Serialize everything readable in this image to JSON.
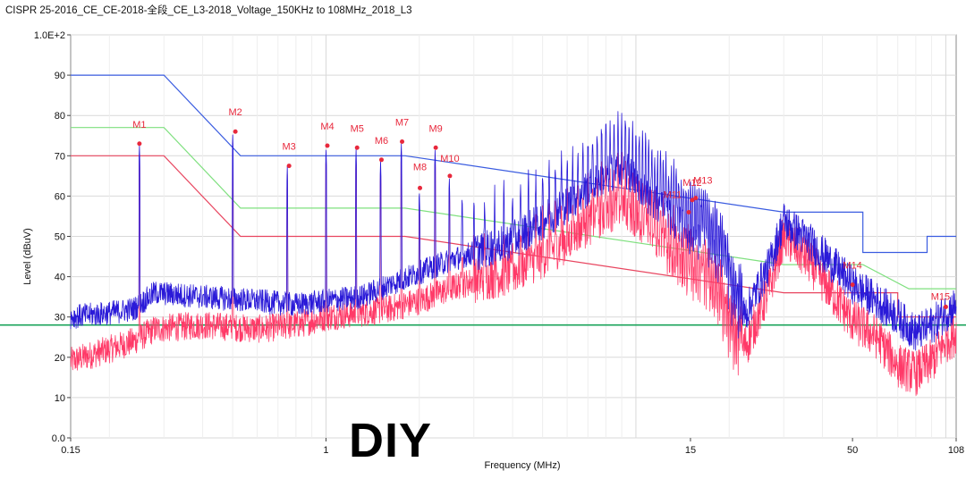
{
  "title": "CISPR 25-2016_CE_CE-2018-全段_CE_L3-2018_Voltage_150KHz to 108MHz_2018_L3",
  "watermark": "DIY",
  "colors": {
    "peak_limit": "#3a5ce0",
    "qp_limit": "#7fe07f",
    "avg_limit": "#e8455f",
    "peak_trace": "#2a1ad8",
    "avg_trace": "#ff3a68",
    "marker": "#e8283c",
    "reference_line": "#1aa35a",
    "grid": "#d9d9d9"
  },
  "chart_data": {
    "type": "line",
    "title": "CISPR 25-2016_CE_CE-2018-全段_CE_L3-2018_Voltage_150KHz to 108MHz_2018_L3",
    "xlabel": "Frequency (MHz)",
    "ylabel": "Level (dBuV)",
    "x_scale": "log",
    "xlim": [
      0.15,
      108
    ],
    "ylim": [
      0,
      100
    ],
    "x_ticks": [
      {
        "value": 0.15,
        "label": "0.15"
      },
      {
        "value": 1,
        "label": "1"
      },
      {
        "value": 15,
        "label": "15"
      },
      {
        "value": 50,
        "label": "50"
      },
      {
        "value": 108,
        "label": "108"
      }
    ],
    "y_ticks": [
      {
        "value": 0,
        "label": "0.0"
      },
      {
        "value": 10,
        "label": "10"
      },
      {
        "value": 20,
        "label": "20"
      },
      {
        "value": 30,
        "label": "30"
      },
      {
        "value": 40,
        "label": "40"
      },
      {
        "value": 50,
        "label": "50"
      },
      {
        "value": 60,
        "label": "60"
      },
      {
        "value": 70,
        "label": "70"
      },
      {
        "value": 80,
        "label": "80"
      },
      {
        "value": 90,
        "label": "90"
      },
      {
        "value": 100,
        "label": "1.0E+2"
      }
    ],
    "grid": true,
    "reference_line": 28,
    "limits": [
      {
        "role": "peak_limit",
        "points": [
          [
            0.15,
            90
          ],
          [
            0.3,
            90
          ],
          [
            0.53,
            70
          ],
          [
            1.8,
            70
          ],
          [
            30,
            56
          ],
          [
            54,
            56
          ],
          [
            54,
            46
          ],
          [
            87,
            46
          ],
          [
            87,
            50
          ],
          [
            108,
            50
          ]
        ]
      },
      {
        "role": "qp_limit",
        "points": [
          [
            0.15,
            77
          ],
          [
            0.3,
            77
          ],
          [
            0.53,
            57
          ],
          [
            1.8,
            57
          ],
          [
            30,
            43
          ],
          [
            54,
            43
          ],
          [
            76,
            37
          ],
          [
            108,
            37
          ]
        ]
      },
      {
        "role": "avg_limit",
        "points": [
          [
            0.15,
            70
          ],
          [
            0.3,
            70
          ],
          [
            0.53,
            50
          ],
          [
            1.8,
            50
          ],
          [
            30,
            36
          ],
          [
            70,
            36
          ],
          [
            70,
            30
          ],
          [
            108,
            30
          ]
        ]
      }
    ],
    "markers": [
      {
        "label": "M1",
        "x": 0.25,
        "y": 73
      },
      {
        "label": "M2",
        "x": 0.51,
        "y": 76
      },
      {
        "label": "M3",
        "x": 0.76,
        "y": 67.5
      },
      {
        "label": "M4",
        "x": 1.01,
        "y": 72.5
      },
      {
        "label": "M5",
        "x": 1.26,
        "y": 72
      },
      {
        "label": "M6",
        "x": 1.51,
        "y": 69
      },
      {
        "label": "M7",
        "x": 1.76,
        "y": 73.5
      },
      {
        "label": "M8",
        "x": 2.01,
        "y": 62
      },
      {
        "label": "M9",
        "x": 2.26,
        "y": 72
      },
      {
        "label": "M10",
        "x": 2.51,
        "y": 65
      },
      {
        "label": "M11",
        "x": 14.8,
        "y": 56
      },
      {
        "label": "M12",
        "x": 15.2,
        "y": 59
      },
      {
        "label": "M13",
        "x": 15.6,
        "y": 59.5
      },
      {
        "label": "M14",
        "x": 50,
        "y": 38
      },
      {
        "label": "M15",
        "x": 100,
        "y": 32.5
      }
    ],
    "series": [
      {
        "role": "peak_trace",
        "envelope": [
          [
            0.15,
            30
          ],
          [
            0.2,
            31
          ],
          [
            0.24,
            32
          ],
          [
            0.28,
            36
          ],
          [
            0.4,
            35
          ],
          [
            0.6,
            34
          ],
          [
            0.8,
            33
          ],
          [
            1.0,
            34
          ],
          [
            1.3,
            35
          ],
          [
            1.6,
            38
          ],
          [
            2.0,
            41
          ],
          [
            2.5,
            44
          ],
          [
            3,
            46
          ],
          [
            4,
            49
          ],
          [
            5,
            54
          ],
          [
            6,
            58
          ],
          [
            7,
            62
          ],
          [
            8,
            65
          ],
          [
            9,
            67
          ],
          [
            10,
            64
          ],
          [
            11,
            60
          ],
          [
            13,
            55
          ],
          [
            15,
            50
          ],
          [
            17,
            47
          ],
          [
            19,
            42
          ],
          [
            21,
            28
          ],
          [
            23,
            32
          ],
          [
            25,
            38
          ],
          [
            27,
            43
          ],
          [
            28,
            47
          ],
          [
            30,
            54
          ],
          [
            32,
            52
          ],
          [
            36,
            49
          ],
          [
            42,
            44
          ],
          [
            50,
            38
          ],
          [
            60,
            34
          ],
          [
            70,
            30
          ],
          [
            80,
            26
          ],
          [
            90,
            28
          ],
          [
            100,
            31
          ],
          [
            108,
            33
          ]
        ],
        "noise": 3,
        "harmonics": {
          "f0": 0.25,
          "end": 20,
          "level_over": 8
        }
      },
      {
        "role": "avg_trace",
        "envelope": [
          [
            0.15,
            19
          ],
          [
            0.2,
            22
          ],
          [
            0.24,
            24
          ],
          [
            0.28,
            27
          ],
          [
            0.4,
            28
          ],
          [
            0.6,
            27
          ],
          [
            0.8,
            28
          ],
          [
            1.0,
            30
          ],
          [
            1.3,
            31
          ],
          [
            1.6,
            32
          ],
          [
            2.0,
            34
          ],
          [
            2.5,
            37
          ],
          [
            3,
            39
          ],
          [
            4,
            41
          ],
          [
            5,
            45
          ],
          [
            6,
            49
          ],
          [
            7,
            53
          ],
          [
            8,
            56
          ],
          [
            9,
            58
          ],
          [
            10,
            55
          ],
          [
            11,
            51
          ],
          [
            13,
            45
          ],
          [
            15,
            40
          ],
          [
            17,
            37
          ],
          [
            19,
            30
          ],
          [
            21,
            20
          ],
          [
            23,
            24
          ],
          [
            25,
            31
          ],
          [
            27,
            37
          ],
          [
            28,
            42
          ],
          [
            30,
            50
          ],
          [
            32,
            48
          ],
          [
            36,
            44
          ],
          [
            42,
            37
          ],
          [
            50,
            29
          ],
          [
            60,
            25
          ],
          [
            70,
            18
          ],
          [
            80,
            16
          ],
          [
            90,
            19
          ],
          [
            100,
            24
          ],
          [
            108,
            26
          ]
        ],
        "noise": 3.5
      }
    ]
  }
}
